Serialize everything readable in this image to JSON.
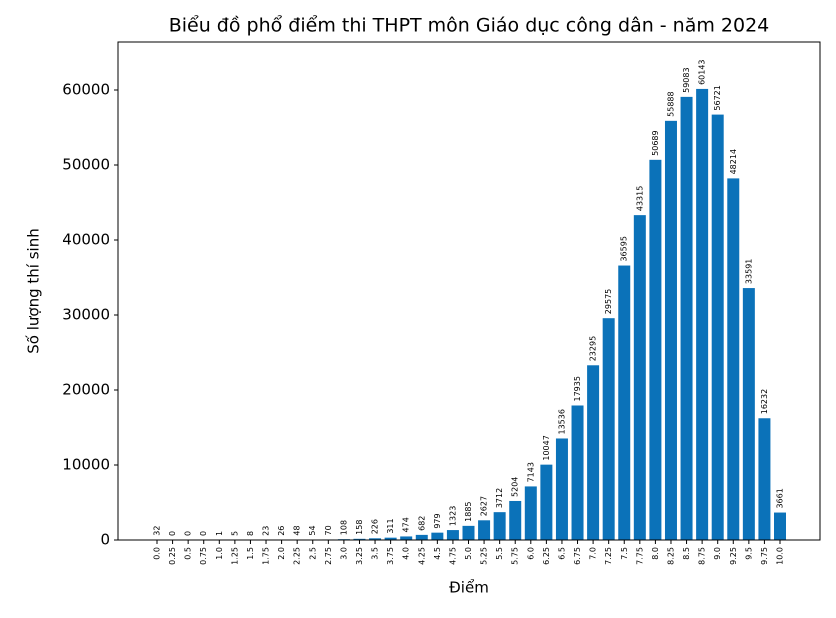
{
  "chart_data": {
    "type": "bar",
    "title": "Biểu đồ phổ điểm thi THPT môn Giáo dục công dân - năm 2024",
    "x_label": "Điểm",
    "y_label": "Số lượng thí sinh",
    "categories": [
      "0.0",
      "0.25",
      "0.5",
      "0.75",
      "1.0",
      "1.25",
      "1.5",
      "1.75",
      "2.0",
      "2.25",
      "2.5",
      "2.75",
      "3.0",
      "3.25",
      "3.5",
      "3.75",
      "4.0",
      "4.25",
      "4.5",
      "4.75",
      "5.0",
      "5.25",
      "5.5",
      "5.75",
      "6.0",
      "6.25",
      "6.5",
      "6.75",
      "7.0",
      "7.25",
      "7.5",
      "7.75",
      "8.0",
      "8.25",
      "8.5",
      "8.75",
      "9.0",
      "9.25",
      "9.5",
      "9.75",
      "10.0"
    ],
    "values": [
      32,
      0,
      0,
      0,
      1,
      5,
      8,
      23,
      26,
      48,
      54,
      70,
      108,
      158,
      226,
      311,
      474,
      682,
      979,
      1323,
      1885,
      2627,
      3712,
      5204,
      7143,
      10047,
      13536,
      17935,
      23295,
      29575,
      36595,
      43315,
      50689,
      55888,
      59083,
      60143,
      56721,
      48214,
      33591,
      16232,
      3661
    ],
    "color": "#0b72b9",
    "ylim": [
      0,
      66400
    ],
    "yticks": [
      0,
      10000,
      20000,
      30000,
      40000,
      50000,
      60000
    ],
    "grid": false
  }
}
